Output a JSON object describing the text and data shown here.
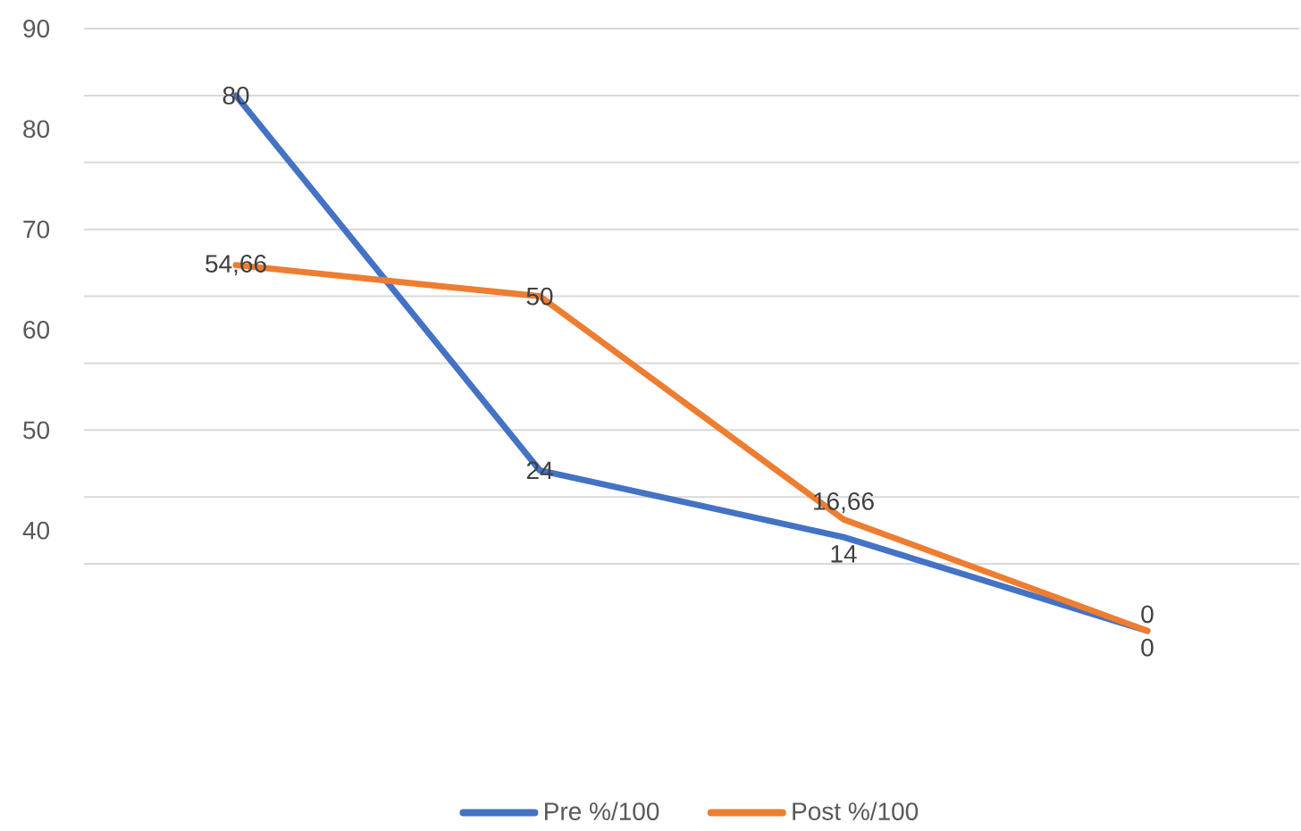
{
  "chart_data": {
    "type": "line",
    "categories": [
      null,
      null,
      null,
      null
    ],
    "series": [
      {
        "name": "Pre %/100",
        "color": "#4472c4",
        "values": [
          80,
          24,
          14,
          0
        ],
        "value_labels": [
          "80",
          "24",
          "14",
          "0"
        ]
      },
      {
        "name": "Post %/100",
        "color": "#ed7d31",
        "values": [
          54.66,
          50,
          16.66,
          0
        ],
        "value_labels": [
          "54,66",
          "50",
          "16,66",
          "0"
        ]
      }
    ],
    "yticks": [
      10,
      20,
      30,
      40,
      50,
      60,
      70,
      80,
      90
    ],
    "annotations": [
      "90",
      "80",
      "70",
      "60",
      "50",
      "40"
    ],
    "tick_labels": false,
    "grid": "y",
    "legend": "bottom",
    "marker": "none",
    "line_style": "solid"
  }
}
